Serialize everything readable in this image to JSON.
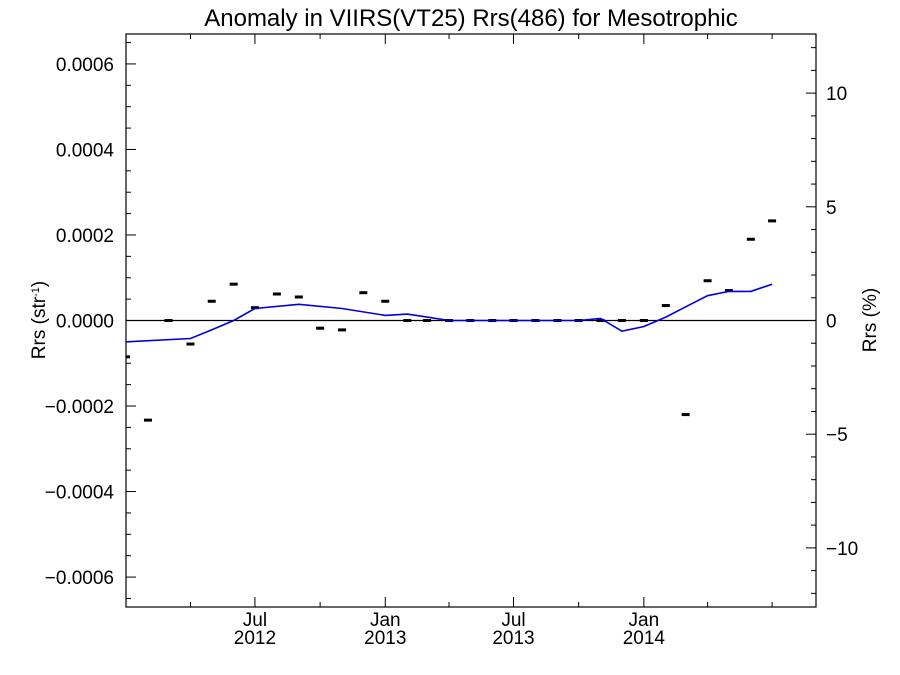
{
  "chart_data": {
    "type": "scatter",
    "title": "Anomaly in VIIRS(VT25) Rrs(486) for Mesotrophic",
    "ylabel_left": {
      "base": "Rrs (str",
      "sup": "-1",
      "end": ")"
    },
    "ylabel_right": "Rrs (%)",
    "xlabel": "",
    "x_ticks": [
      {
        "date": "2012-07-01",
        "line1": "Jul",
        "line2": "2012"
      },
      {
        "date": "2013-01-01",
        "line1": "Jan",
        "line2": "2013"
      },
      {
        "date": "2013-07-01",
        "line1": "Jul",
        "line2": "2013"
      },
      {
        "date": "2014-01-01",
        "line1": "Jan",
        "line2": "2014"
      }
    ],
    "x_minor_tick_dates": [
      "2012-04-01",
      "2012-10-01",
      "2013-04-01",
      "2013-10-01",
      "2014-04-01",
      "2014-07-01"
    ],
    "xlim": [
      "2012-01-01",
      "2014-09-01"
    ],
    "ylim_left": [
      -0.00067,
      0.00067
    ],
    "y_ticks_left": [
      {
        "value": -0.0006,
        "label": "−0.0006"
      },
      {
        "value": -0.0004,
        "label": "−0.0004"
      },
      {
        "value": -0.0002,
        "label": "−0.0002"
      },
      {
        "value": 0.0,
        "label": "0.0000"
      },
      {
        "value": 0.0002,
        "label": "0.0002"
      },
      {
        "value": 0.0004,
        "label": "0.0004"
      },
      {
        "value": 0.0006,
        "label": "0.0006"
      }
    ],
    "ylim_right": [
      -12.6,
      12.6
    ],
    "y_ticks_right": [
      {
        "value": -10,
        "label": "−10"
      },
      {
        "value": -5,
        "label": "−5"
      },
      {
        "value": 0,
        "label": "0"
      },
      {
        "value": 5,
        "label": "5"
      },
      {
        "value": 10,
        "label": "10"
      }
    ],
    "zero_line": true,
    "series": [
      {
        "style": "markers",
        "color": "#000000",
        "points": [
          {
            "x": "2012-01-01",
            "y": -8.5e-05
          },
          {
            "x": "2012-02-01",
            "y": -0.000233
          },
          {
            "x": "2012-03-01",
            "y": 0.0
          },
          {
            "x": "2012-04-01",
            "y": -5.5e-05
          },
          {
            "x": "2012-05-01",
            "y": 4.5e-05
          },
          {
            "x": "2012-06-01",
            "y": 8.5e-05
          },
          {
            "x": "2012-07-01",
            "y": 3e-05
          },
          {
            "x": "2012-08-01",
            "y": 6.2e-05
          },
          {
            "x": "2012-09-01",
            "y": 5.5e-05
          },
          {
            "x": "2012-10-01",
            "y": -1.8e-05
          },
          {
            "x": "2012-11-01",
            "y": -2.2e-05
          },
          {
            "x": "2012-12-01",
            "y": 6.5e-05
          },
          {
            "x": "2013-01-01",
            "y": 4.5e-05
          },
          {
            "x": "2013-02-01",
            "y": 0.0
          },
          {
            "x": "2013-03-01",
            "y": 0.0
          },
          {
            "x": "2013-04-01",
            "y": 0.0
          },
          {
            "x": "2013-05-01",
            "y": 0.0
          },
          {
            "x": "2013-06-01",
            "y": 0.0
          },
          {
            "x": "2013-07-01",
            "y": 0.0
          },
          {
            "x": "2013-08-01",
            "y": 0.0
          },
          {
            "x": "2013-09-01",
            "y": 0.0
          },
          {
            "x": "2013-10-01",
            "y": 0.0
          },
          {
            "x": "2013-11-01",
            "y": 0.0
          },
          {
            "x": "2013-12-01",
            "y": 0.0
          },
          {
            "x": "2014-01-01",
            "y": 0.0
          },
          {
            "x": "2014-02-01",
            "y": 3.5e-05
          },
          {
            "x": "2014-03-01",
            "y": -0.00022
          },
          {
            "x": "2014-04-01",
            "y": 9.3e-05
          },
          {
            "x": "2014-05-01",
            "y": 7e-05
          },
          {
            "x": "2014-06-01",
            "y": 0.00019
          },
          {
            "x": "2014-07-01",
            "y": 0.000233
          }
        ]
      },
      {
        "style": "line",
        "color": "#0000dd",
        "points": [
          {
            "x": "2012-01-01",
            "y": -5e-05
          },
          {
            "x": "2012-04-01",
            "y": -4.2e-05
          },
          {
            "x": "2012-05-01",
            "y": -2.2e-05
          },
          {
            "x": "2012-06-01",
            "y": 0.0
          },
          {
            "x": "2012-07-01",
            "y": 2.8e-05
          },
          {
            "x": "2012-09-01",
            "y": 3.8e-05
          },
          {
            "x": "2012-11-01",
            "y": 2.8e-05
          },
          {
            "x": "2013-01-01",
            "y": 1.2e-05
          },
          {
            "x": "2013-02-01",
            "y": 1.5e-05
          },
          {
            "x": "2013-03-01",
            "y": 8e-06
          },
          {
            "x": "2013-04-01",
            "y": 0.0
          },
          {
            "x": "2013-10-01",
            "y": 0.0
          },
          {
            "x": "2013-11-01",
            "y": 5e-06
          },
          {
            "x": "2013-12-01",
            "y": -2.5e-05
          },
          {
            "x": "2014-01-01",
            "y": -1.4e-05
          },
          {
            "x": "2014-02-01",
            "y": 8e-06
          },
          {
            "x": "2014-03-01",
            "y": 3.2e-05
          },
          {
            "x": "2014-04-01",
            "y": 5.8e-05
          },
          {
            "x": "2014-05-01",
            "y": 6.8e-05
          },
          {
            "x": "2014-06-01",
            "y": 6.8e-05
          },
          {
            "x": "2014-07-01",
            "y": 8.5e-05
          }
        ]
      }
    ],
    "grid": false,
    "legend": "none"
  }
}
